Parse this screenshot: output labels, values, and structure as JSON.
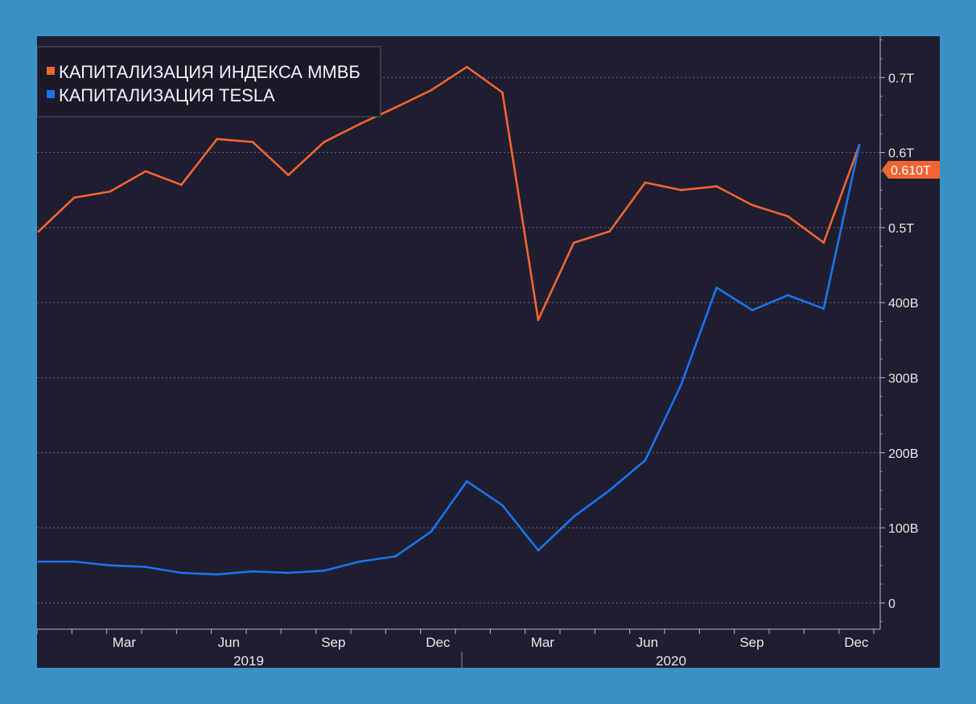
{
  "chart_data": {
    "type": "line",
    "title": "",
    "xlabel": "",
    "ylabel": "",
    "x_tick_labels": [
      "Mar",
      "Jun",
      "Sep",
      "Dec",
      "Mar",
      "Jun",
      "Sep",
      "Dec"
    ],
    "year_labels": [
      "2019",
      "2020"
    ],
    "y_tick_labels": [
      "0",
      "100B",
      "200B",
      "300B",
      "400B",
      "0.5T",
      "0.6T",
      "0.7T"
    ],
    "ylim": [
      -35,
      755
    ],
    "grid": true,
    "legend_position": "top-left",
    "last_value_label": "0.610T",
    "x": [
      "2019-01",
      "2019-02",
      "2019-03",
      "2019-04",
      "2019-05",
      "2019-06",
      "2019-07",
      "2019-08",
      "2019-09",
      "2019-10",
      "2019-11",
      "2019-12",
      "2020-01",
      "2020-02",
      "2020-03",
      "2020-04",
      "2020-05",
      "2020-06",
      "2020-07",
      "2020-08",
      "2020-09",
      "2020-10",
      "2020-11",
      "2020-12"
    ],
    "series": [
      {
        "name": "КАПИТАЛИЗАЦИЯ ИНДЕКСА ММВБ",
        "color": "#f26430",
        "values": [
          495,
          540,
          548,
          575,
          557,
          618,
          614,
          570,
          614,
          638,
          660,
          683,
          714,
          680,
          377,
          480,
          495,
          560,
          550,
          555,
          530,
          515,
          480,
          610
        ]
      },
      {
        "name": "КАПИТАЛИЗАЦИЯ TESLA",
        "color": "#1a73ee",
        "values": [
          55,
          55,
          50,
          48,
          40,
          38,
          42,
          40,
          43,
          55,
          62,
          95,
          162,
          130,
          70,
          115,
          150,
          190,
          290,
          420,
          390,
          410,
          392,
          610
        ]
      }
    ]
  }
}
